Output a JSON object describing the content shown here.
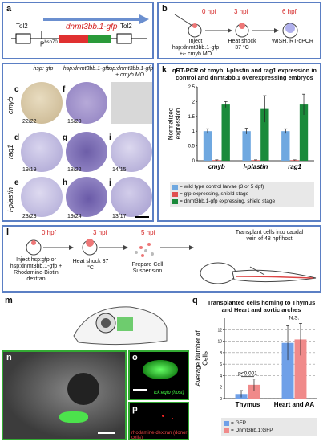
{
  "panels": {
    "a": {
      "letter": "a",
      "tol2_left": "Tol2",
      "promoter": "P",
      "promoter_sup": "hsp70",
      "gene": "dnmt3bb.1-gfp",
      "tol2_right": "Tol2"
    },
    "b": {
      "letter": "b",
      "t0": "0 hpf",
      "t3": "3 hpf",
      "t6": "6 hpf",
      "step1": "Inject hsp:dnmt3bb.1-gfp +/- cmyb MO",
      "step2": "Heat shock 37 °C",
      "step3": "WISH, RT-qPCR"
    },
    "grid": {
      "col_headers": [
        "hsp: gfp",
        "hsp:dnmt3bb.1-gfp",
        "hsp:dnmt3bb.1-gfp + cmyb MO"
      ],
      "rows": [
        {
          "gene": "cmyb",
          "cells": [
            {
              "letter": "c",
              "count": "22/22"
            },
            {
              "letter": "f",
              "count": "15/20"
            }
          ]
        },
        {
          "gene": "rag1",
          "cells": [
            {
              "letter": "d",
              "count": "19/19"
            },
            {
              "letter": "g",
              "count": "18/22"
            },
            {
              "letter": "i",
              "count": "14/15"
            }
          ]
        },
        {
          "gene": "l-plastin",
          "cells": [
            {
              "letter": "e",
              "count": "23/23"
            },
            {
              "letter": "h",
              "count": "19/24"
            },
            {
              "letter": "j",
              "count": "13/17"
            }
          ]
        }
      ]
    },
    "k": {
      "letter": "k"
    },
    "l": {
      "letter": "l",
      "t0": "0 hpf",
      "t3": "3 hpf",
      "t5": "5 hpf",
      "step1": "Inject hsp:gfp or hsp:dnmt3bb.1-gfp + Rhodamine-Biotin dextran",
      "step2": "Heat shock 37 °C",
      "step3": "Prepare Cell Suspension",
      "step4": "Transplant cells into caudal vein of 48 hpf host"
    },
    "m": {
      "letter": "m"
    },
    "n": {
      "letter": "n"
    },
    "o": {
      "letter": "o",
      "caption": "lck:egfp (host)"
    },
    "p": {
      "letter": "p",
      "caption": "rhodamine-dextran (donor cells)"
    },
    "q": {
      "letter": "q"
    }
  },
  "chart_data": [
    {
      "type": "bar",
      "panel": "k",
      "title": "qRT-PCR of cmyb, l-plastin and rag1 expression in control and dnmt3bb.1 overexpressing embryos",
      "ylabel": "Normalized expression",
      "ylim": [
        0,
        2.5
      ],
      "yticks": [
        "0",
        "0.5",
        "1",
        "1.5",
        "2",
        "2.5"
      ],
      "categories": [
        "cmyb",
        "l-plastin",
        "rag1"
      ],
      "series": [
        {
          "name": "= wild type control larvae (3 or 5 dpf)",
          "color": "#6fa8e0",
          "values": [
            1.0,
            1.0,
            1.0
          ],
          "errors": [
            0.08,
            0.1,
            0.08
          ]
        },
        {
          "name": "= gfp expressing, shield stage",
          "color": "#e05050",
          "values": [
            0.02,
            0.02,
            0.02
          ],
          "errors": [
            0.01,
            0.01,
            0.01
          ]
        },
        {
          "name": "= dnmt3bb.1-gfp expressing, shield stage",
          "color": "#1a8a3a",
          "values": [
            1.9,
            1.75,
            1.9
          ],
          "errors": [
            0.1,
            0.45,
            0.35
          ]
        }
      ]
    },
    {
      "type": "bar",
      "panel": "q",
      "title": "Transplanted cells homing to Thymus and Heart and aortic arches",
      "ylabel": "Average Number of Cells",
      "ylim": [
        0,
        14
      ],
      "yticks": [
        "0",
        "2",
        "4",
        "6",
        "8",
        "10",
        "12"
      ],
      "categories": [
        "Thymus",
        "Heart and AA"
      ],
      "annotations": [
        "p<0.001",
        "N.S."
      ],
      "series": [
        {
          "name": "= GFP",
          "color": "#6fa0e8",
          "values": [
            0.8,
            9.7
          ],
          "errors": [
            0.6,
            3.0
          ]
        },
        {
          "name": "= Dnmt3bb.1:GFP",
          "color": "#f08a8a",
          "values": [
            2.4,
            10.3
          ],
          "errors": [
            1.0,
            2.8
          ]
        }
      ]
    }
  ]
}
